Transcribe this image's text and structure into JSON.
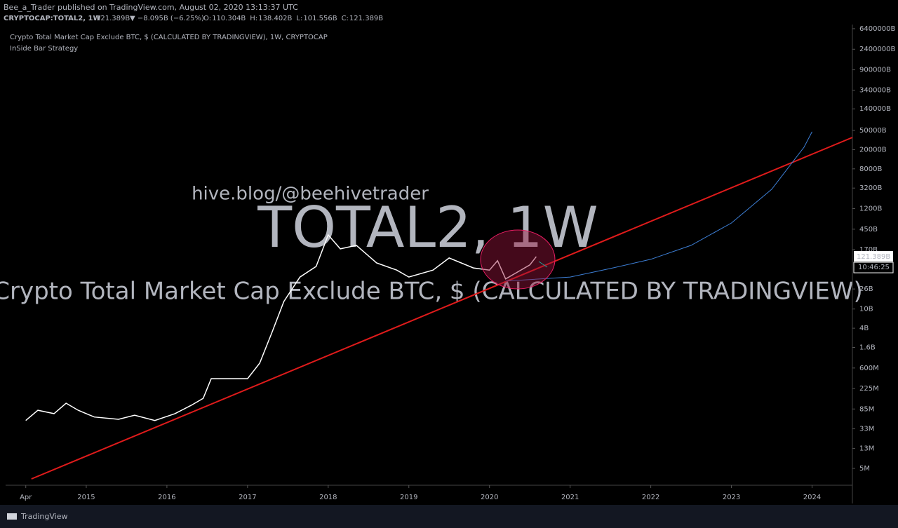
{
  "header": {
    "publisher": "Bee_a_Trader published on TradingView.com, August 02, 2020 13:13:37 UTC",
    "symbol": "CRYPTOCAP:TOTAL2, 1W",
    "price": "121.389B",
    "change": "▼ −8.095B (−6.25%)",
    "ohlc": [
      {
        "label": "O:",
        "value": "110.304B"
      },
      {
        "label": "H:",
        "value": "138.402B"
      },
      {
        "label": "L:",
        "value": "101.556B"
      },
      {
        "label": "C:",
        "value": "121.389B"
      }
    ],
    "countdown": "10:46:25",
    "brand": "TradingView"
  },
  "chart_data": {
    "type": "line",
    "title": "Crypto Total Market Cap Exclude BTC, $ (CALCULATED BY TRADINGVIEW), 1W, CRYPTOCAP",
    "subtitle": "InSide Bar Strategy",
    "watermark": "hive.blog/@beehivetrader",
    "watermark_symbol": "TOTAL2, 1W",
    "watermark_description": "Crypto Total Market Cap Exclude BTC, $ (CALCULATED BY TRADINGVIEW)",
    "log_scale": true,
    "xlim": [
      2014.0,
      2024.5
    ],
    "xticks": [
      {
        "value": 2014.25,
        "label": "Apr"
      },
      2015,
      2016,
      2017,
      2018,
      2019,
      2020,
      2021,
      2022,
      2023,
      2024
    ],
    "ylim": [
      2240000,
      7800000000000000
    ],
    "yticks": [
      {
        "value": 5000000,
        "label": "5M"
      },
      {
        "value": 13000000,
        "label": "13M"
      },
      {
        "value": 33000000,
        "label": "33M"
      },
      {
        "value": 85000000,
        "label": "85M"
      },
      {
        "value": 225000000,
        "label": "225M"
      },
      {
        "value": 600000000,
        "label": "600M"
      },
      {
        "value": 1600000000,
        "label": "1.6B"
      },
      {
        "value": 4000000000,
        "label": "4B"
      },
      {
        "value": 10000000000,
        "label": "10B"
      },
      {
        "value": 26000000000,
        "label": "26B"
      },
      {
        "value": 170000000000,
        "label": "170B"
      },
      {
        "value": 450000000000,
        "label": "450B"
      },
      {
        "value": 1200000000000,
        "label": "1200B"
      },
      {
        "value": 3200000000000,
        "label": "3200B"
      },
      {
        "value": 8000000000000,
        "label": "8000B"
      },
      {
        "value": 20000000000000,
        "label": "20000B"
      },
      {
        "value": 50000000000000,
        "label": "50000B"
      },
      {
        "value": 140000000000000,
        "label": "140000B"
      },
      {
        "value": 340000000000000,
        "label": "340000B"
      },
      {
        "value": 900000000000000,
        "label": "900000B"
      },
      {
        "value": 2400000000000000,
        "label": "2400000B"
      },
      {
        "value": 6400000000000000,
        "label": "6400000B"
      }
    ],
    "series": [
      {
        "color": "#ffffff",
        "x": [
          2014.25,
          2014.4,
          2014.6,
          2014.75,
          2014.9,
          2015.1,
          2015.4,
          2015.6,
          2015.85,
          2016.1,
          2016.3,
          2016.45,
          2016.55,
          2016.8,
          2017.0,
          2017.15,
          2017.3,
          2017.45,
          2017.65,
          2017.85,
          2018.0,
          2018.15,
          2018.35,
          2018.6,
          2018.85,
          2019.0,
          2019.3,
          2019.5,
          2019.8,
          2020.0,
          2020.1,
          2020.2,
          2020.5,
          2020.58
        ],
        "values": [
          49000000,
          80000000,
          68000000,
          112000000,
          80000000,
          58000000,
          52000000,
          63000000,
          49000000,
          68000000,
          101000000,
          141000000,
          361000000,
          361000000,
          361000000,
          755000000,
          3180000000,
          14300000000,
          46000000000,
          76000000000,
          343000000000,
          176000000000,
          208000000000,
          90000000000,
          64000000000,
          46000000000,
          64000000000,
          114000000000,
          71000000000,
          64000000000,
          100000000000,
          42000000000,
          82000000000,
          121389000000
        ]
      },
      {
        "color": "#e01b1b",
        "x": [
          2014.32,
          2024.5
        ],
        "values": [
          3030000,
          35800000000000
        ]
      },
      {
        "color": "#3d7fd6",
        "x": [
          2020.2,
          2021.0,
          2021.5,
          2022.0,
          2022.5,
          2023.0,
          2023.5,
          2023.9,
          2024.0
        ],
        "values": [
          37800000000,
          46000000000,
          69000000000,
          107000000000,
          208000000000,
          605000000000,
          3020000000000,
          22400000000000,
          46900000000000
        ]
      }
    ]
  }
}
